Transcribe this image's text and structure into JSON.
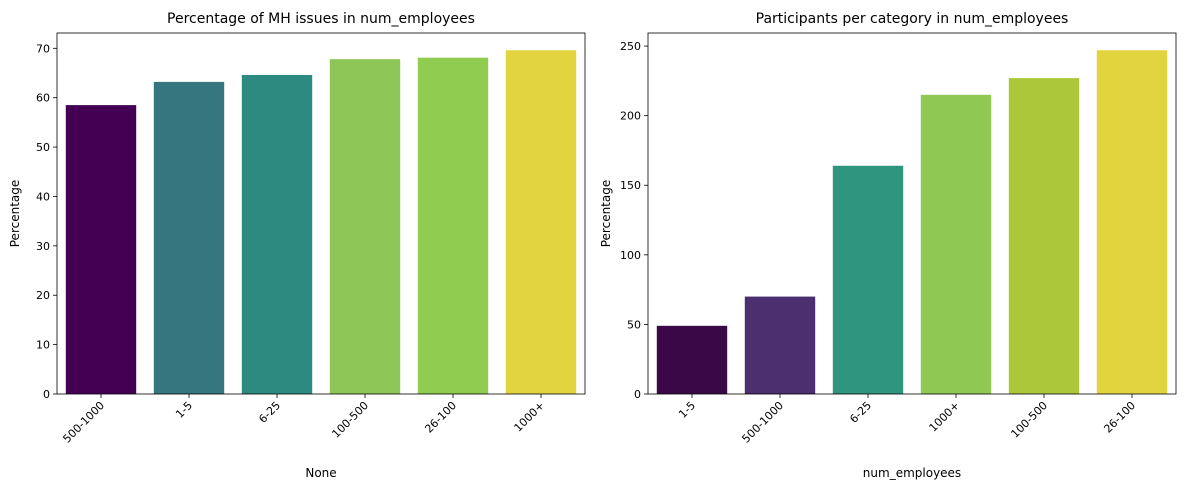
{
  "chart_data": [
    {
      "type": "bar",
      "title": "Percentage of MH issues in num_employees",
      "xlabel": "None",
      "ylabel": "Percentage",
      "categories": [
        "500-1000",
        "1-5",
        "6-25",
        "100-500",
        "26-100",
        "1000+"
      ],
      "values": [
        58.5,
        63.2,
        64.6,
        67.8,
        68.1,
        69.6
      ],
      "colors": [
        "#440154",
        "#35767f",
        "#2d8a80",
        "#8dc657",
        "#8fcc50",
        "#e2d43e"
      ],
      "ylim": [
        0,
        73.1
      ],
      "yticks": [
        0,
        10,
        20,
        30,
        40,
        50,
        60,
        70
      ],
      "grid": false,
      "legend": false
    },
    {
      "type": "bar",
      "title": "Participants per category in num_employees",
      "xlabel": "num_employees",
      "ylabel": "Percentage",
      "categories": [
        "1-5",
        "500-1000",
        "6-25",
        "1000+",
        "100-500",
        "26-100"
      ],
      "values": [
        49,
        70,
        164,
        215,
        227,
        247
      ],
      "colors": [
        "#3b0847",
        "#4b2f6e",
        "#2e957e",
        "#8fc853",
        "#adc73b",
        "#e2d43e"
      ],
      "ylim": [
        0,
        259.4
      ],
      "yticks": [
        0,
        50,
        100,
        150,
        200,
        250
      ],
      "grid": false,
      "legend": false
    }
  ]
}
